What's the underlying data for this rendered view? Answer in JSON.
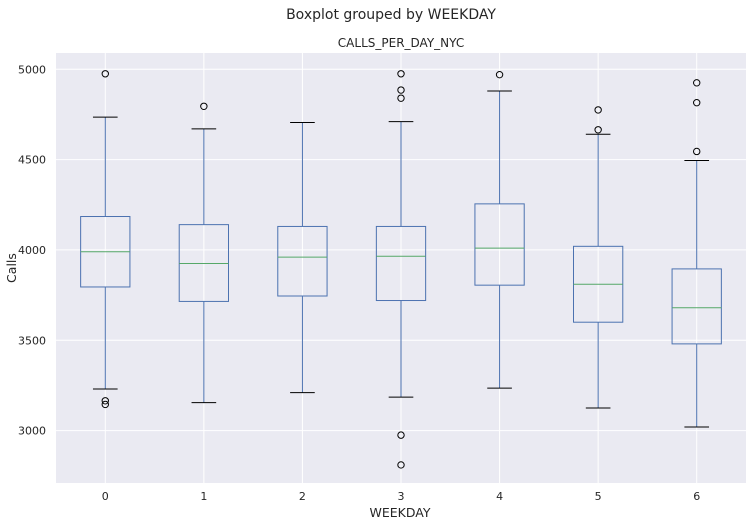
{
  "chart_data": {
    "type": "box",
    "suptitle": "Boxplot grouped by WEEKDAY",
    "title": "CALLS_PER_DAY_NYC",
    "xlabel": "WEEKDAY",
    "ylabel": "Calls",
    "categories": [
      "0",
      "1",
      "2",
      "3",
      "4",
      "5",
      "6"
    ],
    "yticks": [
      3000,
      3500,
      4000,
      4500,
      5000
    ],
    "ylim": [
      2710,
      5090
    ],
    "grid": true,
    "colors": {
      "background": "#eaeaf2",
      "grid": "#ffffff",
      "box": "#4c72b0",
      "median": "#55a868",
      "cap": "#000000",
      "flier": "#000000"
    },
    "boxes": [
      {
        "category": "0",
        "whisker_low": 3230,
        "q1": 3795,
        "median": 3990,
        "q3": 4185,
        "whisker_high": 4735,
        "outliers": [
          4975,
          3165,
          3145
        ]
      },
      {
        "category": "1",
        "whisker_low": 3155,
        "q1": 3715,
        "median": 3925,
        "q3": 4140,
        "whisker_high": 4670,
        "outliers": [
          4795
        ]
      },
      {
        "category": "2",
        "whisker_low": 3210,
        "q1": 3745,
        "median": 3960,
        "q3": 4130,
        "whisker_high": 4705,
        "outliers": []
      },
      {
        "category": "3",
        "whisker_low": 3185,
        "q1": 3720,
        "median": 3965,
        "q3": 4130,
        "whisker_high": 4710,
        "outliers": [
          4975,
          4885,
          4840,
          2975,
          2810
        ]
      },
      {
        "category": "4",
        "whisker_low": 3235,
        "q1": 3805,
        "median": 4010,
        "q3": 4255,
        "whisker_high": 4880,
        "outliers": [
          4970
        ]
      },
      {
        "category": "5",
        "whisker_low": 3125,
        "q1": 3600,
        "median": 3810,
        "q3": 4020,
        "whisker_high": 4640,
        "outliers": [
          4775,
          4665
        ]
      },
      {
        "category": "6",
        "whisker_low": 3020,
        "q1": 3480,
        "median": 3680,
        "q3": 3895,
        "whisker_high": 4495,
        "outliers": [
          4925,
          4815,
          4545
        ]
      }
    ]
  }
}
